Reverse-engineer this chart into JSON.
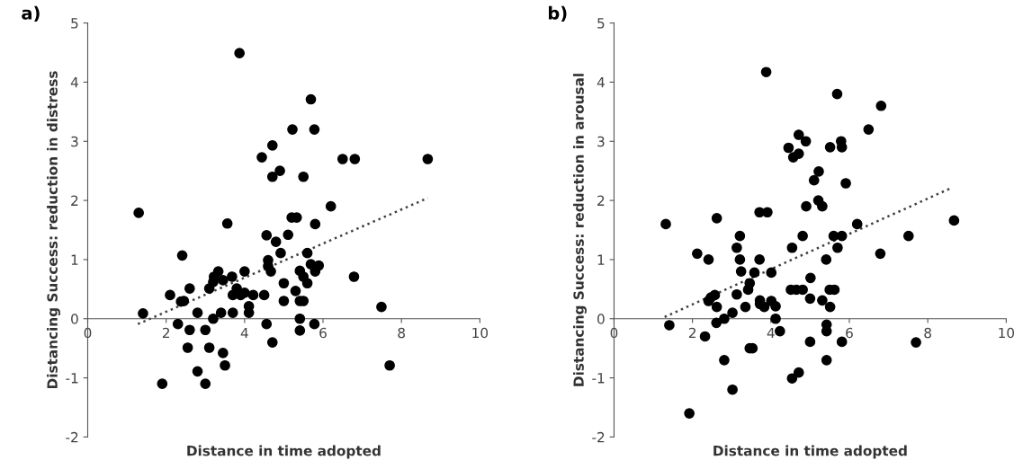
{
  "chart_data": [
    {
      "type": "scatter",
      "title": "a)",
      "xlabel": "Distance in time adopted",
      "ylabel": "Distancing Success: reduction in distress",
      "xlim": [
        0,
        10
      ],
      "ylim": [
        -2,
        5
      ],
      "xticks": [
        0,
        2,
        4,
        6,
        8,
        10
      ],
      "yticks": [
        -2,
        -1,
        0,
        1,
        2,
        3,
        4,
        5
      ],
      "grid": false,
      "legend": false,
      "marker": "circle",
      "series": [
        {
          "color": "#000000",
          "x": [
            1.3,
            1.41,
            2.1,
            2.41,
            2.38,
            2.45,
            2.6,
            2.3,
            2.6,
            2.55,
            2.8,
            2.8,
            1.9,
            3.0,
            3.1,
            3.0,
            3.1,
            3.2,
            3.2,
            3.22,
            3.33,
            3.4,
            3.45,
            3.45,
            3.5,
            3.56,
            3.68,
            3.7,
            3.7,
            3.8,
            3.87,
            3.9,
            4.0,
            4.0,
            4.11,
            4.11,
            4.22,
            4.5,
            4.44,
            4.56,
            4.56,
            4.6,
            4.6,
            4.67,
            4.71,
            4.71,
            4.71,
            4.8,
            4.9,
            4.92,
            5.0,
            5.0,
            5.11,
            5.22,
            5.2,
            5.33,
            5.69,
            5.78,
            6.5,
            6.81,
            8.67,
            5.5,
            6.2,
            5.8,
            5.6,
            5.69,
            5.89,
            5.8,
            5.41,
            5.5,
            5.6,
            5.3,
            5.41,
            5.5,
            6.79,
            7.49,
            5.41,
            5.41,
            5.78,
            7.7
          ],
          "values": [
            1.79,
            0.09,
            0.4,
            1.07,
            0.29,
            0.3,
            0.51,
            -0.09,
            -0.19,
            -0.49,
            0.1,
            -0.89,
            -1.1,
            -0.19,
            -0.49,
            -1.1,
            0.51,
            0.62,
            0.0,
            0.71,
            0.8,
            0.1,
            0.65,
            -0.58,
            -0.79,
            1.61,
            0.71,
            0.1,
            0.4,
            0.51,
            4.49,
            0.4,
            0.8,
            0.44,
            0.21,
            0.1,
            0.4,
            0.4,
            2.73,
            1.41,
            -0.09,
            0.99,
            0.89,
            0.8,
            2.93,
            2.4,
            -0.4,
            1.3,
            2.5,
            1.11,
            0.6,
            0.3,
            1.42,
            3.2,
            1.71,
            1.71,
            3.71,
            3.2,
            2.7,
            2.7,
            2.7,
            2.4,
            1.9,
            1.6,
            1.11,
            0.92,
            0.9,
            0.8,
            0.81,
            0.71,
            0.6,
            0.47,
            0.3,
            0.3,
            0.71,
            0.2,
            0.0,
            -0.2,
            -0.09,
            -0.79
          ]
        },
        {
          "type": "line",
          "color": "#404040",
          "line_style": "dotted",
          "marker": "none",
          "x": [
            1.28,
            8.67
          ],
          "values": [
            -0.09,
            2.04
          ]
        }
      ]
    },
    {
      "type": "scatter",
      "title": "b)",
      "xlabel": "Distance in time adopted",
      "ylabel": "Distancing Success: reduction in arousal",
      "xlim": [
        0,
        10
      ],
      "ylim": [
        -2,
        5
      ],
      "xticks": [
        0,
        2,
        4,
        6,
        8,
        10
      ],
      "yticks": [
        -2,
        -1,
        0,
        1,
        2,
        3,
        4,
        5
      ],
      "grid": false,
      "legend": false,
      "marker": "circle",
      "series": [
        {
          "color": "#000000",
          "x": [
            1.32,
            1.41,
            2.12,
            2.32,
            2.41,
            2.41,
            2.47,
            2.57,
            2.62,
            2.62,
            2.61,
            2.81,
            2.81,
            3.02,
            3.02,
            1.92,
            3.13,
            3.13,
            3.21,
            3.21,
            3.24,
            3.35,
            3.42,
            3.46,
            3.46,
            3.53,
            3.58,
            3.71,
            3.71,
            3.91,
            3.72,
            3.72,
            3.83,
            3.88,
            4.01,
            4.01,
            4.12,
            4.12,
            4.23,
            4.45,
            4.57,
            4.54,
            4.51,
            4.54,
            4.71,
            4.89,
            4.71,
            5.69,
            6.81,
            6.49,
            5.51,
            5.79,
            5.81,
            5.22,
            5.1,
            5.91,
            5.21,
            5.31,
            4.9,
            4.81,
            6.2,
            5.6,
            5.81,
            5.7,
            7.51,
            8.67,
            6.79,
            5.41,
            5.01,
            4.65,
            4.81,
            5.5,
            5.62,
            5.0,
            5.31,
            5.51,
            5.0,
            5.42,
            5.42,
            5.81,
            7.7,
            5.42,
            4.71
          ],
          "values": [
            1.6,
            -0.11,
            1.1,
            -0.3,
            1.0,
            0.3,
            0.36,
            0.4,
            1.7,
            0.2,
            -0.07,
            0.0,
            -0.7,
            0.1,
            -1.2,
            -1.6,
            0.41,
            1.2,
            1.4,
            1.0,
            0.8,
            0.2,
            0.49,
            0.6,
            -0.5,
            -0.5,
            0.78,
            1.0,
            1.8,
            1.8,
            0.31,
            0.25,
            0.2,
            4.17,
            0.78,
            0.3,
            0.21,
            0.0,
            -0.21,
            2.89,
            2.73,
            1.2,
            0.49,
            -1.01,
            3.11,
            3.0,
            2.79,
            3.8,
            3.6,
            3.2,
            2.9,
            3.0,
            2.9,
            2.49,
            2.34,
            2.29,
            2.0,
            1.9,
            1.9,
            1.4,
            1.6,
            1.4,
            1.4,
            1.2,
            1.4,
            1.66,
            1.1,
            1.0,
            0.69,
            0.49,
            0.49,
            0.49,
            0.49,
            0.34,
            0.31,
            0.2,
            -0.39,
            -0.1,
            -0.21,
            -0.39,
            -0.4,
            -0.7,
            -0.91
          ]
        },
        {
          "type": "line",
          "color": "#404040",
          "line_style": "dotted",
          "marker": "none",
          "x": [
            1.29,
            8.6
          ],
          "values": [
            0.03,
            2.21
          ]
        }
      ]
    }
  ]
}
